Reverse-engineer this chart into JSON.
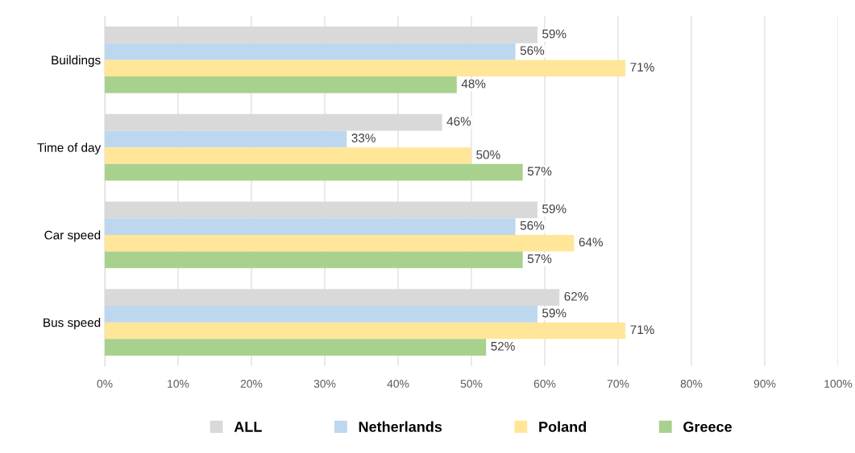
{
  "chart_data": {
    "type": "bar",
    "orientation": "horizontal",
    "categories": [
      "Buildings",
      "Time of day",
      "Car speed",
      "Bus speed"
    ],
    "series": [
      {
        "name": "ALL",
        "color": "#d9d9d9",
        "values": [
          59,
          46,
          59,
          62
        ],
        "value_labels": [
          "59%",
          "46%",
          "59%",
          "62%"
        ]
      },
      {
        "name": "Netherlands",
        "color": "#bdd7ee",
        "values": [
          56,
          33,
          56,
          59
        ],
        "value_labels": [
          "56%",
          "33%",
          "56%",
          "59%"
        ]
      },
      {
        "name": "Poland",
        "color": "#ffe699",
        "values": [
          71,
          50,
          64,
          71
        ],
        "value_labels": [
          "71%",
          "50%",
          "64%",
          "71%"
        ]
      },
      {
        "name": "Greece",
        "color": "#a9d18e",
        "values": [
          48,
          57,
          57,
          52
        ],
        "value_labels": [
          "48%",
          "57%",
          "57%",
          "52%"
        ]
      }
    ],
    "xlim": [
      0,
      100
    ],
    "xticks": [
      {
        "value": 0,
        "label": "0%"
      },
      {
        "value": 10,
        "label": "10%"
      },
      {
        "value": 20,
        "label": "20%"
      },
      {
        "value": 30,
        "label": "30%"
      },
      {
        "value": 40,
        "label": "40%"
      },
      {
        "value": 50,
        "label": "50%"
      },
      {
        "value": 60,
        "label": "60%"
      },
      {
        "value": 70,
        "label": "70%"
      },
      {
        "value": 80,
        "label": "80%"
      },
      {
        "value": 90,
        "label": "90%"
      },
      {
        "value": 100,
        "label": "100%"
      }
    ],
    "grid": "x",
    "legend": "bottom"
  }
}
